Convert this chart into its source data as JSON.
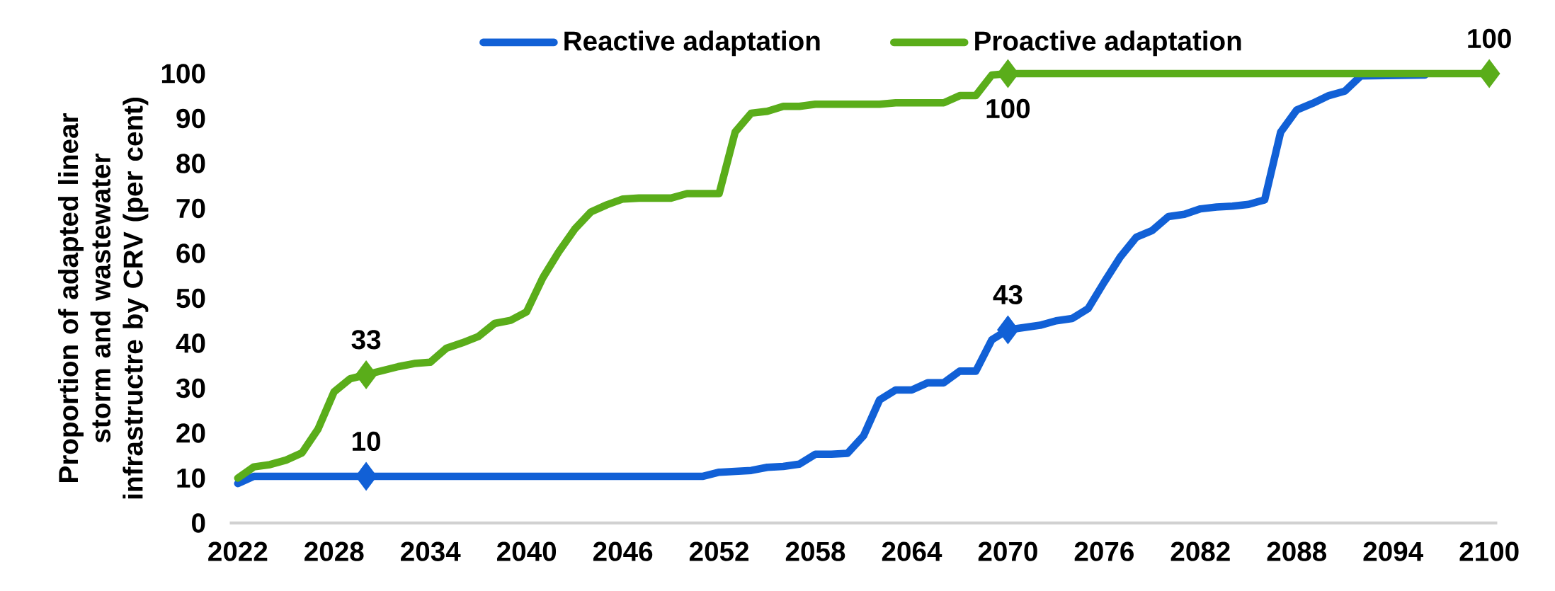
{
  "chart_data": {
    "type": "line",
    "ylabel": "Proportion of adapted linear storm and wastewater infrastructre by CRV (per cent)",
    "xlim": [
      2021.5,
      2100.5
    ],
    "xticks": [
      2022,
      2028,
      2034,
      2040,
      2046,
      2052,
      2058,
      2064,
      2070,
      2076,
      2082,
      2088,
      2094,
      2100
    ],
    "ylim": [
      0,
      100
    ],
    "yticks": [
      0,
      10,
      20,
      30,
      40,
      50,
      60,
      70,
      80,
      90,
      100
    ],
    "grid": false,
    "legend": "top",
    "line_style": "solid",
    "series": [
      {
        "name": "Reactive adaptation",
        "color": "#1160d6",
        "x": [
          2022,
          2023,
          2030,
          2051,
          2052,
          2053,
          2054,
          2055,
          2056,
          2057,
          2058,
          2059,
          2060,
          2061,
          2062,
          2063,
          2064,
          2065,
          2066,
          2067,
          2068,
          2069,
          2070,
          2071,
          2072,
          2073,
          2074,
          2075,
          2076,
          2077,
          2078,
          2079,
          2080,
          2081,
          2082,
          2083,
          2084,
          2085,
          2086,
          2087,
          2088,
          2089,
          2090,
          2091,
          2092,
          2096
        ],
        "values": [
          8.8,
          10.4,
          10.4,
          10.4,
          11.3,
          11.5,
          11.7,
          12.4,
          12.6,
          13.1,
          15.3,
          15.3,
          15.5,
          19.4,
          27.4,
          29.6,
          29.6,
          31.2,
          31.2,
          33.8,
          33.8,
          40.8,
          43,
          43.5,
          44,
          45,
          45.5,
          47.7,
          53.6,
          59.2,
          63.6,
          65.1,
          68.2,
          68.7,
          69.9,
          70.3,
          70.5,
          70.9,
          71.9,
          87,
          91.9,
          93.4,
          95.1,
          96.1,
          99.5,
          99.7
        ],
        "value_labels": [
          null,
          null,
          "10",
          null,
          null,
          null,
          null,
          null,
          null,
          null,
          null,
          null,
          null,
          null,
          null,
          null,
          null,
          null,
          null,
          null,
          null,
          null,
          "43",
          null,
          null,
          null,
          null,
          null,
          null,
          null,
          null,
          null,
          null,
          null,
          null,
          null,
          null,
          null,
          null,
          null,
          null,
          null,
          null,
          null,
          null,
          null
        ]
      },
      {
        "name": "Proactive adaptation",
        "color": "#5aad1a",
        "x": [
          2022,
          2023,
          2024,
          2025,
          2026,
          2027,
          2028,
          2029,
          2030,
          2031,
          2032,
          2033,
          2034,
          2035,
          2036,
          2037,
          2038,
          2039,
          2040,
          2041,
          2042,
          2043,
          2044,
          2045,
          2046,
          2047,
          2048,
          2049,
          2050,
          2051,
          2052,
          2053,
          2054,
          2055,
          2056,
          2057,
          2058,
          2059,
          2060,
          2061,
          2062,
          2063,
          2064,
          2065,
          2066,
          2067,
          2068,
          2069,
          2070,
          2100
        ],
        "values": [
          10,
          12.5,
          13,
          14,
          15.6,
          20.9,
          29.2,
          32.1,
          33,
          33.9,
          34.8,
          35.5,
          35.8,
          38.9,
          40.1,
          41.5,
          44.4,
          45.1,
          47,
          54.5,
          60.3,
          65.4,
          69.2,
          70.8,
          72.1,
          72.3,
          72.3,
          72.3,
          73.3,
          73.3,
          73.3,
          87,
          91.2,
          91.6,
          92.7,
          92.7,
          93.2,
          93.2,
          93.2,
          93.2,
          93.2,
          93.5,
          93.5,
          93.5,
          93.5,
          95.1,
          95.1,
          99.7,
          100,
          100
        ],
        "value_labels": [
          null,
          null,
          null,
          null,
          null,
          null,
          null,
          null,
          "33",
          null,
          null,
          null,
          null,
          null,
          null,
          null,
          null,
          null,
          null,
          null,
          null,
          null,
          null,
          null,
          null,
          null,
          null,
          null,
          null,
          null,
          null,
          null,
          null,
          null,
          null,
          null,
          null,
          null,
          null,
          null,
          null,
          null,
          null,
          null,
          null,
          null,
          null,
          null,
          "100",
          "100"
        ]
      }
    ]
  }
}
